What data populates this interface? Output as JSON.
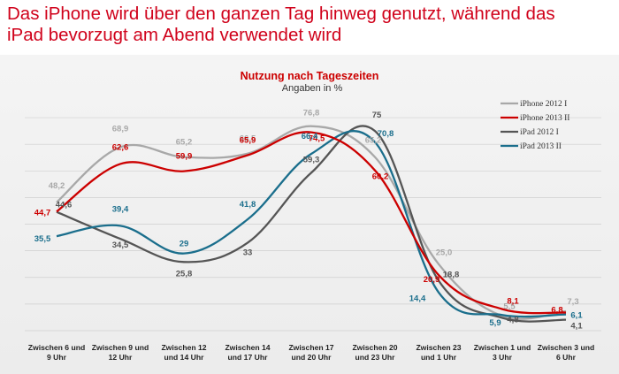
{
  "headline": {
    "line1": "Das iPhone wird über den ganzen Tag hinweg genutzt, während das",
    "line2": "iPad bevorzugt am Abend verwendet wird"
  },
  "chart_data": {
    "type": "line",
    "title": "Nutzung nach Tageszeiten",
    "subtitle": "Angaben in %",
    "ylim": [
      0,
      85
    ],
    "grid": true,
    "legend_position": "top-right",
    "categories": [
      [
        "Zwischen 6 und",
        "9 Uhr"
      ],
      [
        "Zwischen 9 und",
        "12 Uhr"
      ],
      [
        "Zwischen 12",
        "und 14 Uhr"
      ],
      [
        "Zwischen 14",
        "und 17 Uhr"
      ],
      [
        "Zwischen 17",
        "und 20 Uhr"
      ],
      [
        "Zwischen 20",
        "und 23 Uhr"
      ],
      [
        "Zwischen 23",
        "und 1 Uhr"
      ],
      [
        "Zwischen 1 und",
        "3 Uhr"
      ],
      [
        "Zwischen 3 und",
        "6 Uhr"
      ]
    ],
    "series": [
      {
        "name": "iPhone 2012 I",
        "color": "#a8a8a8",
        "values": [
          48.2,
          68.9,
          65.2,
          66.5,
          76.8,
          65.2,
          25.0,
          5.5,
          7.3
        ],
        "labels": [
          "48,2",
          "68,9",
          "65,2",
          "66,5",
          "76,8",
          "65,2",
          "25,0",
          "5,5",
          "7,3"
        ]
      },
      {
        "name": "iPhone 2013 II",
        "color": "#cc0000",
        "values": [
          44.7,
          62.6,
          59.9,
          65.9,
          74.5,
          60.2,
          20.9,
          8.1,
          6.8
        ],
        "labels": [
          "44,7",
          "62,6",
          "59,9",
          "65,9",
          "74,5",
          "60,2",
          "20,9",
          "8,1",
          "6,8"
        ]
      },
      {
        "name": "iPad 2012 I",
        "color": "#555555",
        "values": [
          44.6,
          34.5,
          25.8,
          33,
          59.3,
          75,
          18.8,
          4.8,
          4.1
        ],
        "labels": [
          "44,6",
          "34,5",
          "25,8",
          "33",
          "59,3",
          "75",
          "18,8",
          "4,8",
          "4,1"
        ]
      },
      {
        "name": "iPad 2013 II",
        "color": "#1a6e8c",
        "values": [
          35.5,
          39.4,
          29,
          41.8,
          66.4,
          70.8,
          14.4,
          5.9,
          6.1
        ],
        "labels": [
          "35,5",
          "39,4",
          "29",
          "41,8",
          "66,4",
          "70,8",
          "14,4",
          "5,9",
          "6,1"
        ]
      }
    ]
  }
}
